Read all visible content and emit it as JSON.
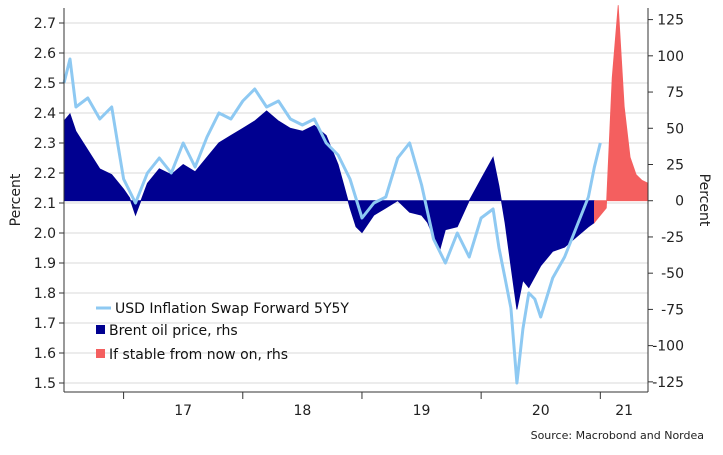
{
  "chart_data": {
    "type": "line",
    "ylabel_left": "Percent",
    "ylabel_right": "Percent",
    "source": "Source: Macrobond and Nordea",
    "x_tick_labels": [
      "17",
      "18",
      "19",
      "20",
      "21"
    ],
    "left_ticks": [
      "2.7",
      "2.6",
      "2.5",
      "2.4",
      "2.3",
      "2.2",
      "2.1",
      "2.0",
      "1.9",
      "1.8",
      "1.7",
      "1.6",
      "1.5"
    ],
    "right_ticks": [
      "125",
      "100",
      "75",
      "50",
      "25",
      "0",
      "-25",
      "-50",
      "-75",
      "-100",
      "-125"
    ],
    "ylim_left": [
      1.47,
      2.75
    ],
    "ylim_right": [
      -132,
      133
    ],
    "xlim": [
      2016.5,
      2021.4
    ],
    "grid": true,
    "legend_position": "bottom-left",
    "colors": {
      "swap": "#8ec9f2",
      "brent": "#000090",
      "stable": "#f45f5f",
      "grid": "#d9d9d9"
    },
    "series": [
      {
        "name": "USD Inflation Swap Forward 5Y5Y",
        "axis": "left",
        "kind": "line",
        "x": [
          2016.5,
          2016.55,
          2016.6,
          2016.7,
          2016.8,
          2016.9,
          2016.95,
          2017.0,
          2017.1,
          2017.2,
          2017.3,
          2017.4,
          2017.5,
          2017.6,
          2017.7,
          2017.8,
          2017.9,
          2018.0,
          2018.1,
          2018.2,
          2018.3,
          2018.4,
          2018.5,
          2018.6,
          2018.7,
          2018.8,
          2018.9,
          2019.0,
          2019.1,
          2019.2,
          2019.3,
          2019.4,
          2019.5,
          2019.6,
          2019.7,
          2019.8,
          2019.9,
          2020.0,
          2020.1,
          2020.15,
          2020.2,
          2020.25,
          2020.3,
          2020.35,
          2020.4,
          2020.45,
          2020.5,
          2020.6,
          2020.7,
          2020.8,
          2020.9,
          2020.95,
          2021.0
        ],
        "values": [
          2.5,
          2.58,
          2.42,
          2.45,
          2.38,
          2.42,
          2.3,
          2.18,
          2.1,
          2.2,
          2.25,
          2.2,
          2.3,
          2.22,
          2.32,
          2.4,
          2.38,
          2.44,
          2.48,
          2.42,
          2.44,
          2.38,
          2.36,
          2.38,
          2.3,
          2.26,
          2.18,
          2.05,
          2.1,
          2.12,
          2.25,
          2.3,
          2.16,
          1.98,
          1.9,
          2.0,
          1.92,
          2.05,
          2.08,
          1.95,
          1.85,
          1.75,
          1.5,
          1.68,
          1.8,
          1.78,
          1.72,
          1.85,
          1.92,
          2.02,
          2.12,
          2.22,
          2.3
        ]
      },
      {
        "name": "Brent oil price, rhs",
        "axis": "right",
        "kind": "area",
        "x": [
          2016.5,
          2016.55,
          2016.6,
          2016.7,
          2016.8,
          2016.9,
          2017.0,
          2017.05,
          2017.1,
          2017.2,
          2017.3,
          2017.4,
          2017.5,
          2017.6,
          2017.7,
          2017.8,
          2017.9,
          2018.0,
          2018.1,
          2018.2,
          2018.3,
          2018.4,
          2018.5,
          2018.6,
          2018.7,
          2018.8,
          2018.85,
          2018.9,
          2018.95,
          2019.0,
          2019.1,
          2019.2,
          2019.3,
          2019.4,
          2019.5,
          2019.55,
          2019.6,
          2019.65,
          2019.7,
          2019.8,
          2019.9,
          2020.0,
          2020.1,
          2020.15,
          2020.2,
          2020.25,
          2020.3,
          2020.35,
          2020.4,
          2020.5,
          2020.6,
          2020.7,
          2020.8,
          2020.9,
          2020.95
        ],
        "values": [
          55,
          60,
          48,
          35,
          22,
          18,
          8,
          2,
          -10,
          12,
          22,
          18,
          25,
          20,
          30,
          40,
          45,
          50,
          55,
          62,
          55,
          50,
          48,
          52,
          45,
          25,
          10,
          -5,
          -18,
          -22,
          -10,
          -5,
          0,
          -8,
          -10,
          -15,
          -25,
          -35,
          -20,
          -18,
          0,
          15,
          30,
          10,
          -15,
          -45,
          -75,
          -55,
          -60,
          -45,
          -35,
          -32,
          -25,
          -18,
          -15
        ]
      },
      {
        "name": "If stable from now on, rhs",
        "axis": "right",
        "kind": "area",
        "x": [
          2020.95,
          2021.0,
          2021.05,
          2021.1,
          2021.15,
          2021.2,
          2021.25,
          2021.3,
          2021.35,
          2021.4
        ],
        "values": [
          -15,
          -10,
          -5,
          85,
          135,
          65,
          30,
          18,
          14,
          12
        ]
      }
    ]
  }
}
